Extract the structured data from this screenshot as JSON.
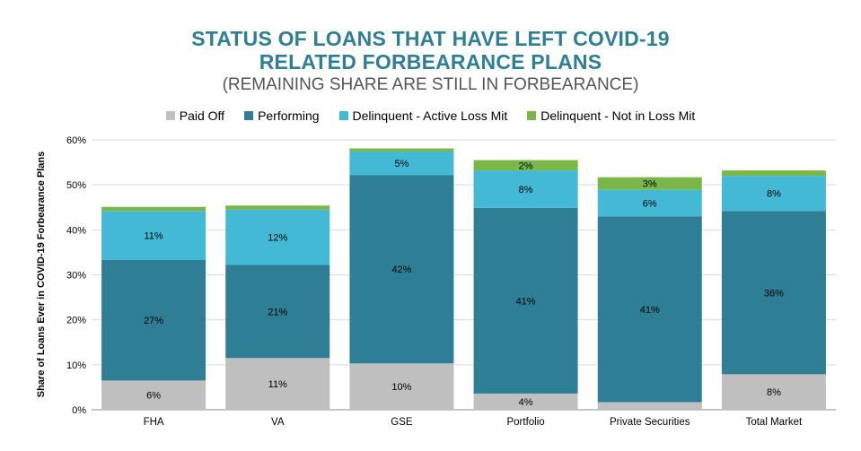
{
  "title_line1": "STATUS OF LOANS THAT HAVE LEFT COVID-19",
  "title_line2": "RELATED FORBEARANCE PLANS",
  "subtitle": "(REMAINING SHARE ARE STILL IN FORBEARANCE)",
  "chart_data": {
    "type": "bar",
    "stacked": true,
    "categories": [
      "FHA",
      "VA",
      "GSE",
      "Portfolio",
      "Private Securities",
      "Total Market"
    ],
    "ylabel": "Share of Loans Ever in COVID-19 Forbearance Plans",
    "ylim": [
      0,
      60
    ],
    "yticks": [
      "0%",
      "10%",
      "20%",
      "30%",
      "40%",
      "50%",
      "60%"
    ],
    "grid": true,
    "legend_position": "top",
    "series": [
      {
        "name": "Paid Off",
        "color": "#bfbfbf",
        "values": [
          6.5,
          11.5,
          10.3,
          3.6,
          1.7,
          7.9
        ],
        "labels": [
          "6%",
          "11%",
          "10%",
          "4%",
          "",
          "8%"
        ]
      },
      {
        "name": "Performing",
        "color": "#2e7f95",
        "values": [
          26.8,
          20.7,
          41.9,
          41.3,
          41.3,
          36.3
        ],
        "labels": [
          "27%",
          "21%",
          "42%",
          "41%",
          "41%",
          "36%"
        ]
      },
      {
        "name": "Delinquent - Active Loss Mit",
        "color": "#43b9d6",
        "values": [
          10.9,
          12.3,
          5.2,
          8.3,
          5.9,
          7.8
        ],
        "labels": [
          "11%",
          "12%",
          "5%",
          "8%",
          "6%",
          "8%"
        ]
      },
      {
        "name": "Delinquent - Not in Loss Mit",
        "color": "#7ab648",
        "values": [
          0.9,
          0.9,
          0.7,
          2.3,
          2.8,
          1.2
        ],
        "labels": [
          "",
          "",
          "",
          "2%",
          "3%",
          ""
        ]
      }
    ]
  }
}
